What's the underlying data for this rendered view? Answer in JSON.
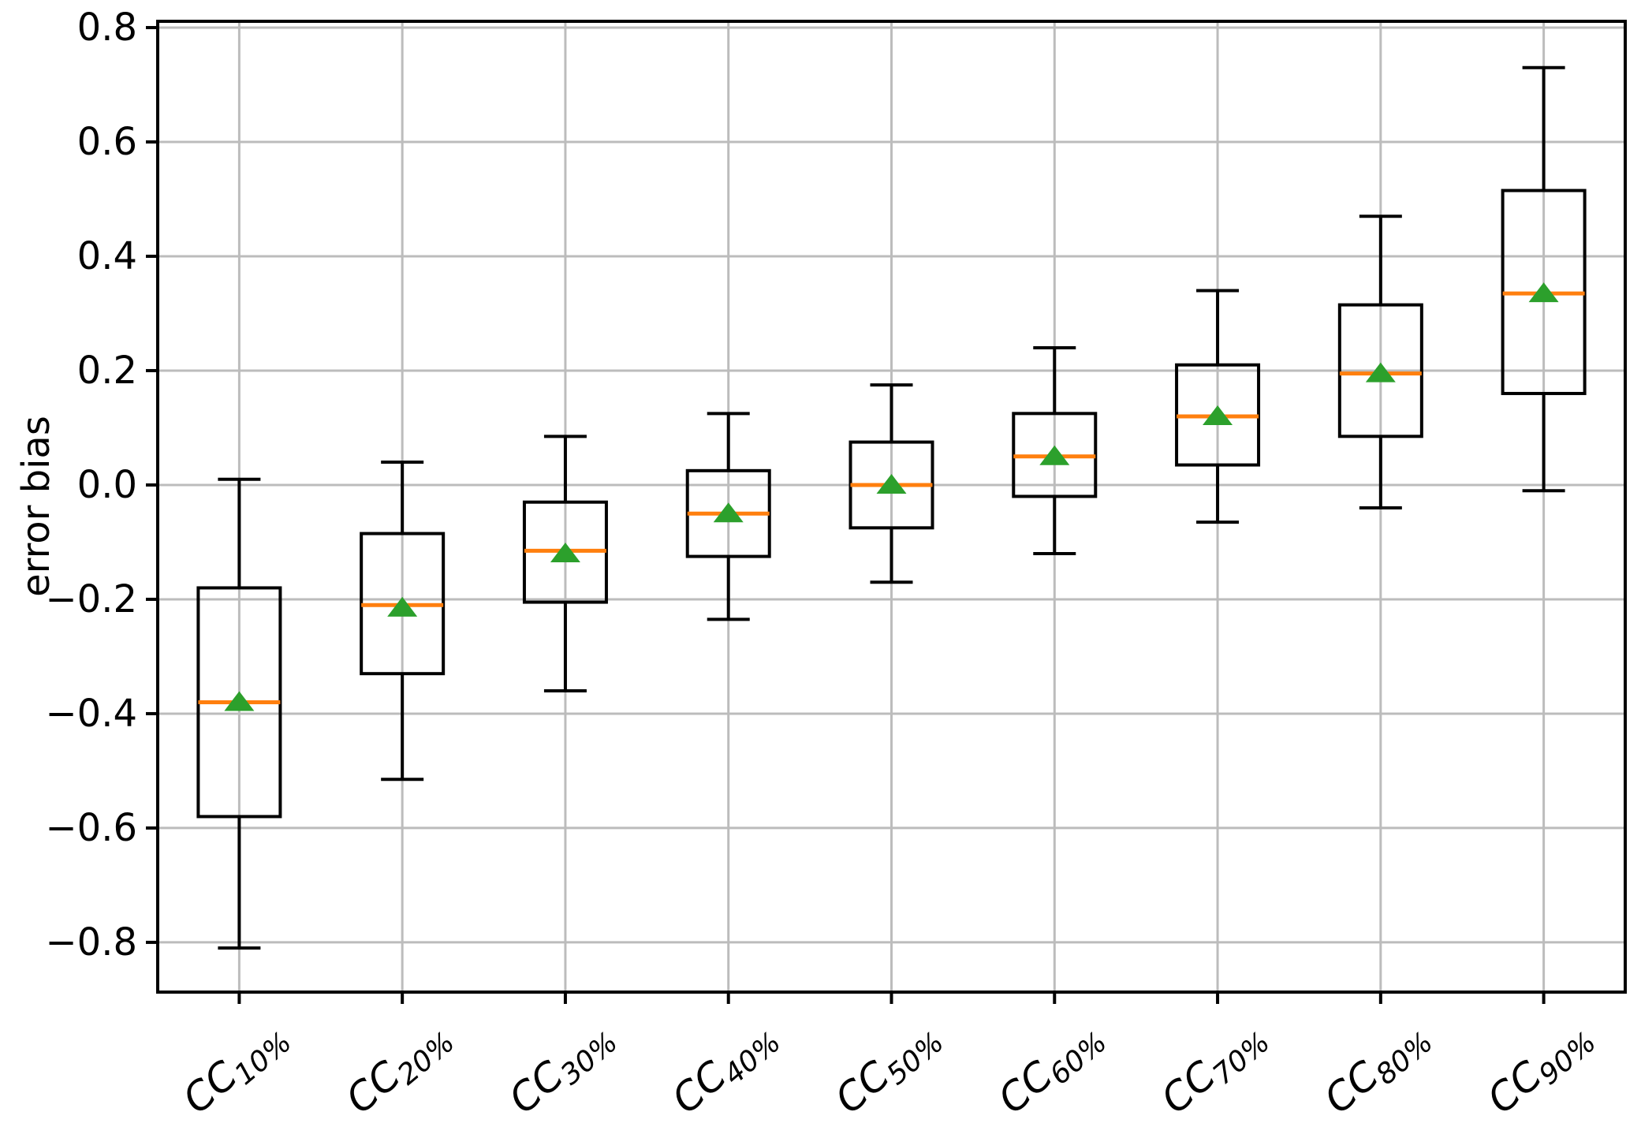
{
  "colors": {
    "median": "#ff7f0e",
    "mean_marker": "#2ca02c",
    "box_line": "#000000",
    "grid": "#bcbcbc",
    "spine": "#000000",
    "background": "#ffffff",
    "text": "#000000"
  },
  "chart_data": {
    "type": "boxplot",
    "title": "",
    "xlabel": "",
    "ylabel": "error bias",
    "grid": true,
    "ylim": [
      -0.887,
      0.811
    ],
    "y_ticks": [
      0.8,
      0.6,
      0.4,
      0.2,
      0.0,
      -0.2,
      -0.4,
      -0.6,
      -0.8
    ],
    "y_tick_labels": [
      "0.8",
      "0.6",
      "0.4",
      "0.2",
      "0.0",
      "−0.2",
      "−0.4",
      "−0.6",
      "−0.8"
    ],
    "x_tick_rotation_deg": -40,
    "categories": [
      {
        "label": "CC10%",
        "base": "CC",
        "sub": "10%"
      },
      {
        "label": "CC20%",
        "base": "CC",
        "sub": "20%"
      },
      {
        "label": "CC30%",
        "base": "CC",
        "sub": "30%"
      },
      {
        "label": "CC40%",
        "base": "CC",
        "sub": "40%"
      },
      {
        "label": "CC50%",
        "base": "CC",
        "sub": "50%"
      },
      {
        "label": "CC60%",
        "base": "CC",
        "sub": "60%"
      },
      {
        "label": "CC70%",
        "base": "CC",
        "sub": "70%"
      },
      {
        "label": "CC80%",
        "base": "CC",
        "sub": "80%"
      },
      {
        "label": "CC90%",
        "base": "CC",
        "sub": "90%"
      }
    ],
    "series": [
      {
        "name": "CC10%",
        "whislo": -0.81,
        "q1": -0.58,
        "med": -0.38,
        "q3": -0.18,
        "whishi": 0.01,
        "mean": -0.38
      },
      {
        "name": "CC20%",
        "whislo": -0.515,
        "q1": -0.33,
        "med": -0.21,
        "q3": -0.085,
        "whishi": 0.04,
        "mean": -0.215
      },
      {
        "name": "CC30%",
        "whislo": -0.36,
        "q1": -0.205,
        "med": -0.115,
        "q3": -0.03,
        "whishi": 0.085,
        "mean": -0.12
      },
      {
        "name": "CC40%",
        "whislo": -0.235,
        "q1": -0.125,
        "med": -0.05,
        "q3": 0.025,
        "whishi": 0.125,
        "mean": -0.05
      },
      {
        "name": "CC50%",
        "whislo": -0.17,
        "q1": -0.075,
        "med": 0.0,
        "q3": 0.075,
        "whishi": 0.175,
        "mean": 0.0
      },
      {
        "name": "CC60%",
        "whislo": -0.12,
        "q1": -0.02,
        "med": 0.05,
        "q3": 0.125,
        "whishi": 0.24,
        "mean": 0.05
      },
      {
        "name": "CC70%",
        "whislo": -0.065,
        "q1": 0.035,
        "med": 0.12,
        "q3": 0.21,
        "whishi": 0.34,
        "mean": 0.12
      },
      {
        "name": "CC80%",
        "whislo": -0.04,
        "q1": 0.085,
        "med": 0.195,
        "q3": 0.315,
        "whishi": 0.47,
        "mean": 0.195
      },
      {
        "name": "CC90%",
        "whislo": -0.01,
        "q1": 0.16,
        "med": 0.335,
        "q3": 0.515,
        "whishi": 0.73,
        "mean": 0.335
      }
    ]
  }
}
